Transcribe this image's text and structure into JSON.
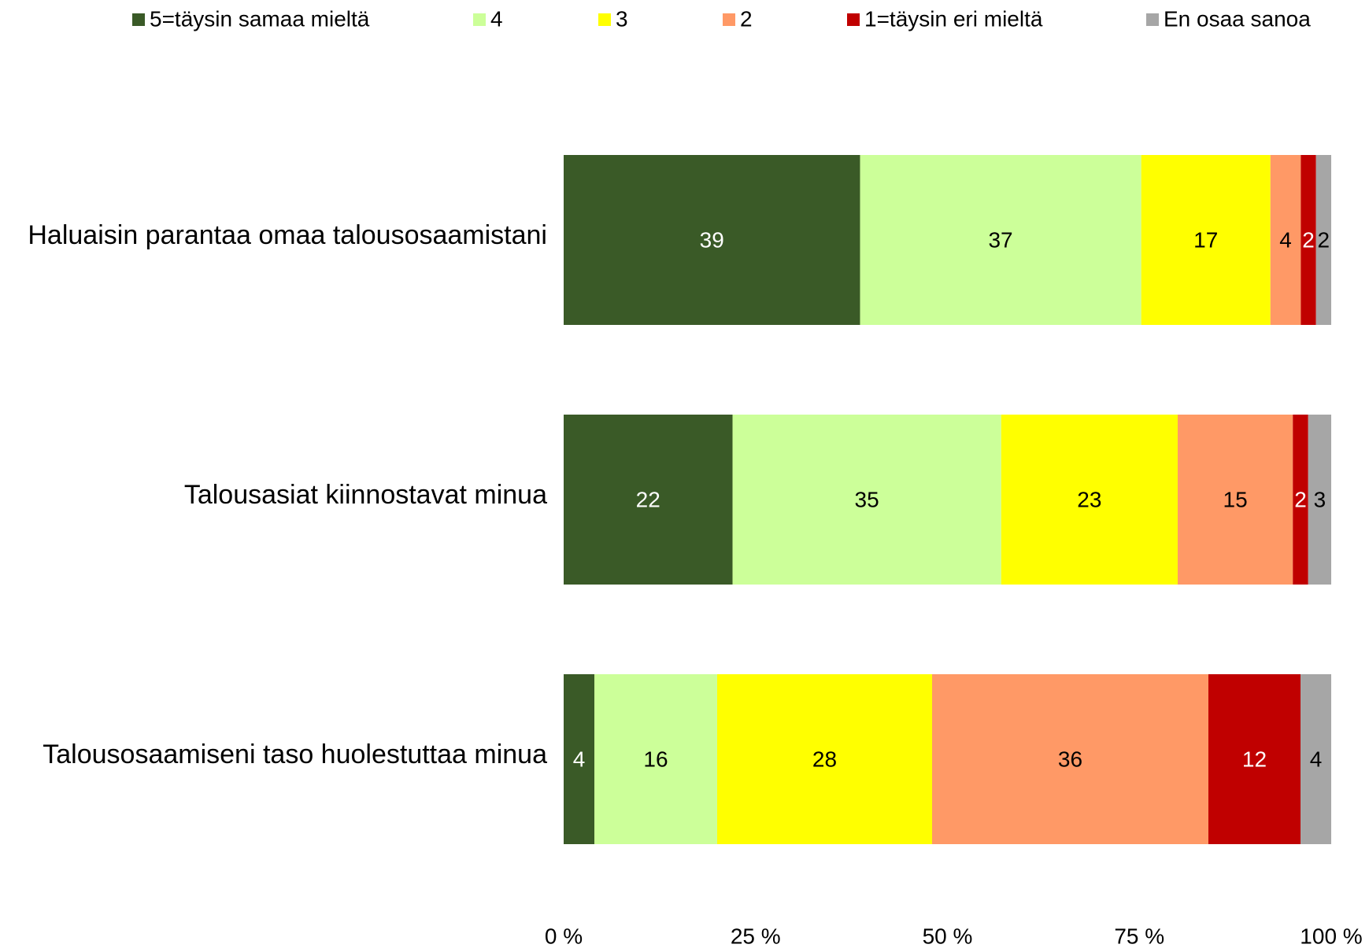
{
  "chart_data": {
    "type": "bar",
    "orientation": "horizontal",
    "stacked": "percent",
    "categories": [
      "Haluaisin parantaa omaa talousosaamistani",
      "Talousasiat kiinnostavat minua",
      "Talousosaamiseni taso huolestuttaa minua"
    ],
    "series": [
      {
        "name": "5=täysin samaa mieltä",
        "color": "#3a5a27",
        "values": [
          39,
          22,
          4
        ]
      },
      {
        "name": "4",
        "color": "#ccff99",
        "values": [
          37,
          35,
          16
        ]
      },
      {
        "name": "3",
        "color": "#ffff00",
        "values": [
          17,
          23,
          28
        ]
      },
      {
        "name": "2",
        "color": "#ff9966",
        "values": [
          4,
          15,
          36
        ]
      },
      {
        "name": "1=täysin eri mieltä",
        "color": "#c00000",
        "values": [
          2,
          2,
          12
        ]
      },
      {
        "name": "En osaa sanoa",
        "color": "#a6a6a6",
        "values": [
          2,
          3,
          4
        ]
      }
    ],
    "xlim": [
      0,
      100
    ],
    "xticks": [
      {
        "value": 0,
        "label": "0 %"
      },
      {
        "value": 25,
        "label": "25 %"
      },
      {
        "value": 50,
        "label": "50 %"
      },
      {
        "value": 75,
        "label": "75 %"
      },
      {
        "value": 100,
        "label": "100 %"
      }
    ],
    "grid": false,
    "legend": "top"
  }
}
